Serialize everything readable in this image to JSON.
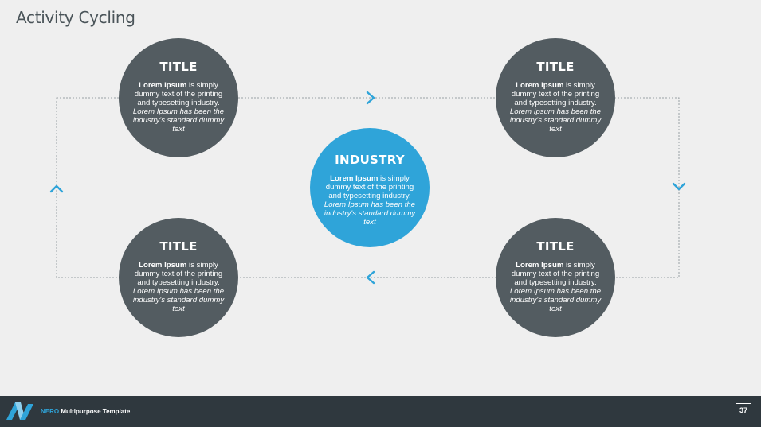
{
  "slide": {
    "title": "Activity Cycling",
    "page_number": "37"
  },
  "center": {
    "title": "INDUSTRY",
    "bold": "Lorem Ipsum",
    "normal": " is simply dummy text of the printing and typesetting industry. ",
    "italic": "Lorem Ipsum has been the industry's standard dummy text"
  },
  "nodes": [
    {
      "title": "TITLE",
      "bold": "Lorem Ipsum",
      "normal": " is simply dummy text of the printing and typesetting industry. ",
      "italic": "Lorem Ipsum has been the industry's standard dummy text"
    },
    {
      "title": "TITLE",
      "bold": "Lorem Ipsum",
      "normal": " is simply dummy text of the printing and typesetting industry. ",
      "italic": "Lorem Ipsum has been the industry's standard dummy text"
    },
    {
      "title": "TITLE",
      "bold": "Lorem Ipsum",
      "normal": " is simply dummy text of the printing and typesetting industry. ",
      "italic": "Lorem Ipsum has been the industry's standard dummy text"
    },
    {
      "title": "TITLE",
      "bold": "Lorem Ipsum",
      "normal": " is simply dummy text of the printing and typesetting industry. ",
      "italic": "Lorem Ipsum has been the industry's standard dummy text"
    }
  ],
  "footer": {
    "brand_accent": "NERO",
    "brand_rest": " Multipurpose Template"
  },
  "colors": {
    "background": "#efefef",
    "circle_dark": "#535c61",
    "accent": "#2fa4d9",
    "footer": "#2f383e",
    "connector": "#9aa0a4"
  },
  "icons": {
    "arrows": [
      "chevron-right-icon",
      "chevron-down-icon",
      "chevron-left-icon",
      "chevron-up-icon"
    ],
    "logo": "nero-logo-icon"
  }
}
